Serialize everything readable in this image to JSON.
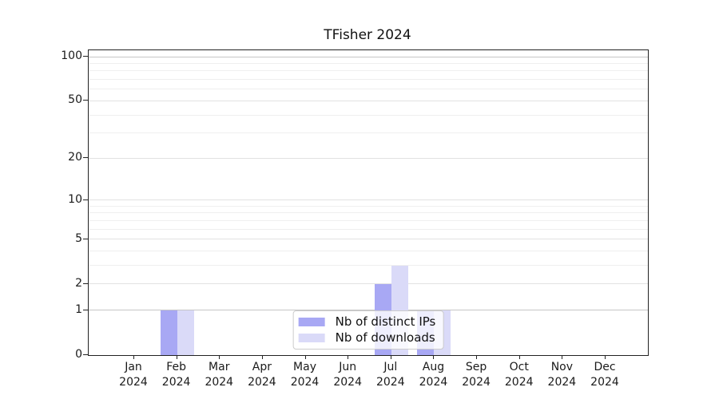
{
  "chart_data": {
    "type": "bar",
    "title": "TFisher 2024",
    "categories": [
      "Jan 2024",
      "Feb 2024",
      "Mar 2024",
      "Apr 2024",
      "May 2024",
      "Jun 2024",
      "Jul 2024",
      "Aug 2024",
      "Sep 2024",
      "Oct 2024",
      "Nov 2024",
      "Dec 2024"
    ],
    "series": [
      {
        "name": "Nb of distinct IPs",
        "color": "#a8a8f4",
        "values": [
          0,
          1,
          0,
          0,
          0,
          0,
          2,
          1,
          0,
          0,
          0,
          0
        ]
      },
      {
        "name": "Nb of downloads",
        "color": "#dadaf8",
        "values": [
          0,
          1,
          0,
          0,
          0,
          0,
          3,
          1,
          0,
          0,
          0,
          0
        ]
      }
    ],
    "xlabel": "",
    "ylabel": "",
    "y_ticks": [
      0,
      1,
      2,
      5,
      10,
      20,
      50,
      100
    ],
    "y_scale": "log1p",
    "ylim": [
      0,
      110
    ],
    "grid": "horizontal",
    "legend_position": "lower center"
  },
  "grid_values": {
    "major": [
      1,
      100
    ],
    "mid": [
      2,
      5,
      10,
      20,
      50
    ],
    "minor": [
      3,
      4,
      6,
      7,
      8,
      9,
      30,
      40,
      60,
      70,
      80,
      90
    ]
  },
  "style": {
    "axis_color": "#222222",
    "text_color": "#1a1a1a",
    "grid_major_color": "#c6c6c6",
    "grid_mid_color": "#e2e2e2",
    "grid_minor_color": "#efefef"
  }
}
